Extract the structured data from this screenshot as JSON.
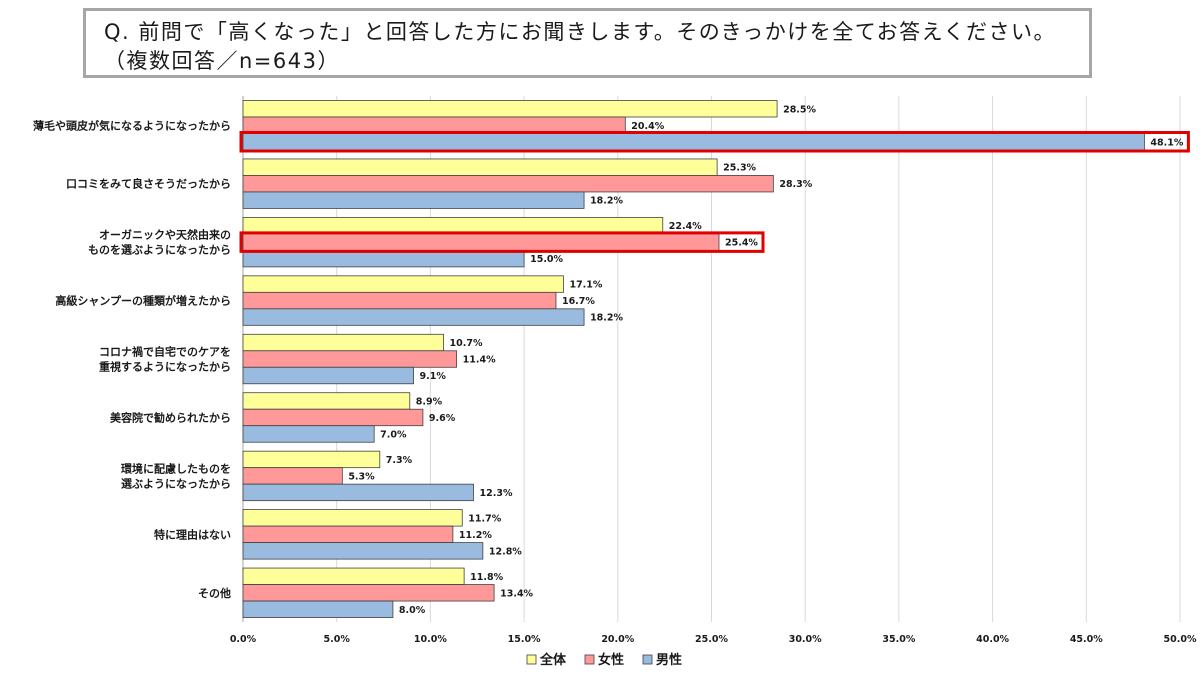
{
  "question": "Q. 前問で「高くなった」と回答した方にお聞きします。そのきっかけを全てお答えください。（複数回答／n=643）",
  "chart_data": {
    "type": "bar",
    "orientation": "horizontal",
    "title": "",
    "xlabel": "",
    "ylabel": "",
    "xlim": [
      0,
      50
    ],
    "grid": true,
    "legend_position": "bottom",
    "ticks": [
      "0.0%",
      "5.0%",
      "10.0%",
      "15.0%",
      "20.0%",
      "25.0%",
      "30.0%",
      "35.0%",
      "40.0%",
      "45.0%",
      "50.0%"
    ],
    "categories": [
      [
        "薄毛や頭皮が気になるようになったから"
      ],
      [
        "口コミをみて良さそうだったから"
      ],
      [
        "オーガニックや天然由来の",
        "ものを選ぶようになったから"
      ],
      [
        "高級シャンプーの種類が増えたから"
      ],
      [
        "コロナ禍で自宅でのケアを",
        "重視するようになったから"
      ],
      [
        "美容院で勧められたから"
      ],
      [
        "環境に配慮したものを",
        "選ぶようになったから"
      ],
      [
        "特に理由はない"
      ],
      [
        "その他"
      ]
    ],
    "series": [
      {
        "name": "全体",
        "color": "#ffff99",
        "values": [
          28.5,
          25.3,
          22.4,
          17.1,
          10.7,
          8.9,
          7.3,
          11.7,
          11.8
        ],
        "labels": [
          "28.5%",
          "25.3%",
          "22.4%",
          "17.1%",
          "10.7%",
          "8.9%",
          "7.3%",
          "11.7%",
          "11.8%"
        ]
      },
      {
        "name": "女性",
        "color": "#ff9999",
        "values": [
          20.4,
          28.3,
          25.4,
          16.7,
          11.4,
          9.6,
          5.3,
          11.2,
          13.4
        ],
        "labels": [
          "20.4%",
          "28.3%",
          "25.4%",
          "16.7%",
          "11.4%",
          "9.6%",
          "5.3%",
          "11.2%",
          "13.4%"
        ]
      },
      {
        "name": "男性",
        "color": "#99bbe0",
        "values": [
          48.1,
          18.2,
          15.0,
          18.2,
          9.1,
          7.0,
          12.3,
          12.8,
          8.0
        ],
        "labels": [
          "48.1%",
          "18.2%",
          "15.0%",
          "18.2%",
          "9.1%",
          "7.0%",
          "12.3%",
          "12.8%",
          "8.0%"
        ]
      }
    ],
    "highlights": [
      {
        "category": 0,
        "series": 2,
        "color": "#e00000"
      },
      {
        "category": 2,
        "series": 1,
        "color": "#e00000"
      }
    ]
  }
}
